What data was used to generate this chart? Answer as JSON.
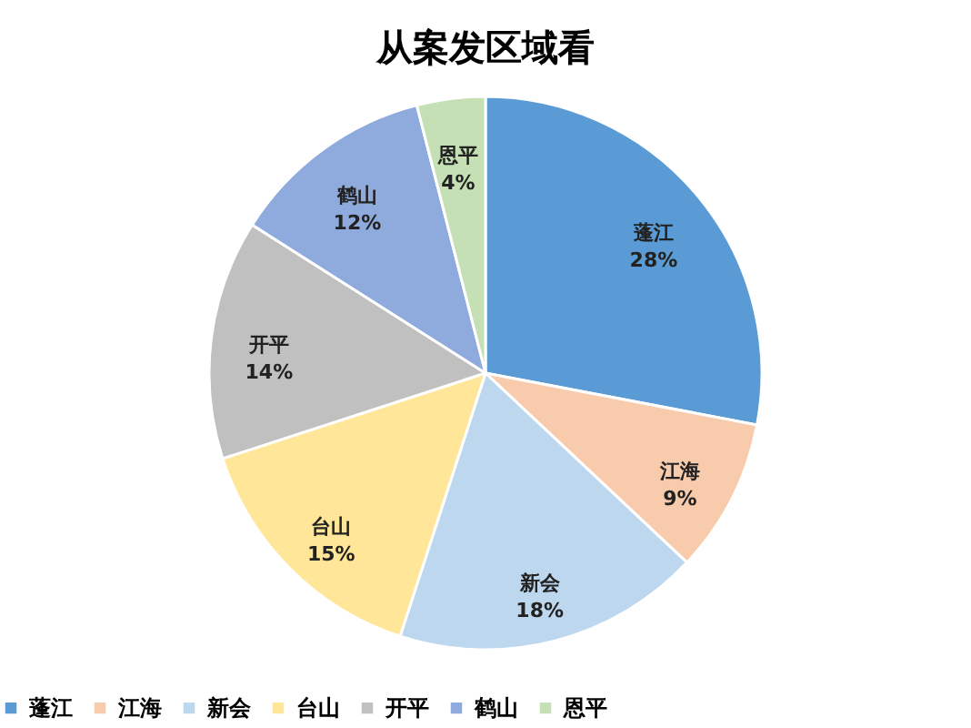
{
  "chart_data": {
    "type": "pie",
    "title": "从案发区域看",
    "categories": [
      "蓬江",
      "江海",
      "新会",
      "台山",
      "开平",
      "鹤山",
      "恩平"
    ],
    "values": [
      28,
      9,
      18,
      15,
      14,
      12,
      4
    ],
    "value_labels": [
      "28%",
      "9%",
      "18%",
      "15%",
      "14%",
      "12%",
      "4%"
    ],
    "colors": [
      "#5b9bd5",
      "#f8cbad",
      "#bdd7ee",
      "#ffe699",
      "#c0c0c0",
      "#8faadc",
      "#c5e0b4"
    ],
    "legend": "bottom"
  }
}
